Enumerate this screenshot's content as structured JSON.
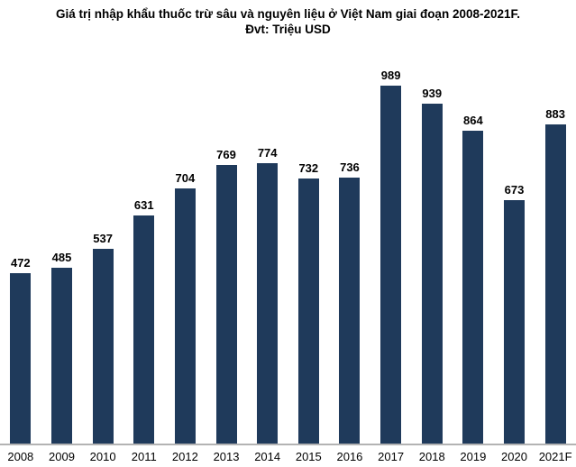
{
  "chart_data": {
    "type": "bar",
    "title": "Giá trị nhập khẩu thuốc trừ sâu và nguyên liệu ở Việt Nam giai đoạn 2008-2021F.",
    "subtitle": "Đvt: Triệu USD",
    "categories": [
      "2008",
      "2009",
      "2010",
      "2011",
      "2012",
      "2013",
      "2014",
      "2015",
      "2016",
      "2017",
      "2018",
      "2019",
      "2020",
      "2021F"
    ],
    "values": [
      472,
      485,
      537,
      631,
      704,
      769,
      774,
      732,
      736,
      989,
      939,
      864,
      673,
      883
    ],
    "xlabel": "",
    "ylabel": "",
    "ylim": [
      0,
      989
    ],
    "grid": false,
    "legend_position": "none",
    "data_labels": true,
    "bar_color": "#1f3a5b",
    "axis_line_color": "#b3b3b3",
    "label_color": "#000000"
  }
}
